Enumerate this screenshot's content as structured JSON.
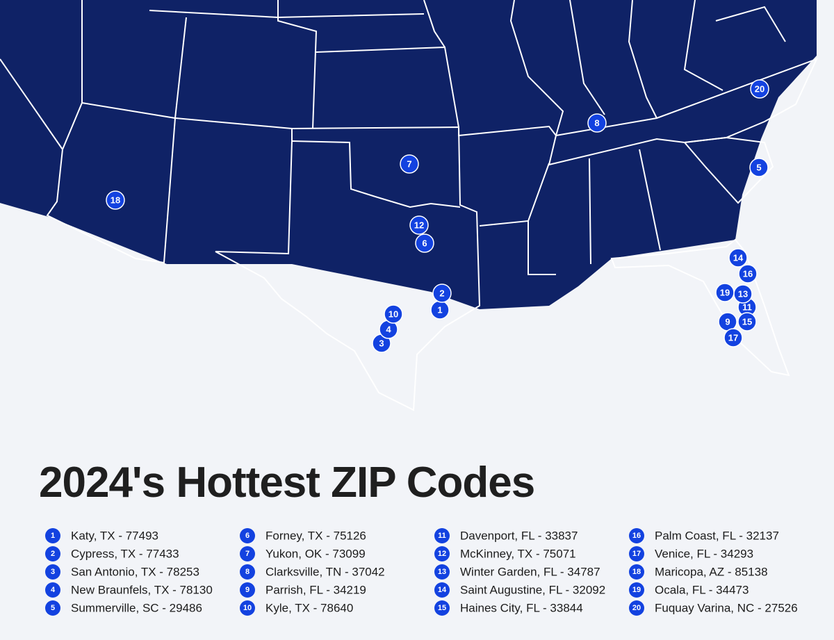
{
  "title": "2024's Hottest ZIP Codes",
  "locations": [
    {
      "rank": 1,
      "label": "Katy, TX - 77493"
    },
    {
      "rank": 2,
      "label": "Cypress, TX - 77433"
    },
    {
      "rank": 3,
      "label": "San Antonio, TX - 78253"
    },
    {
      "rank": 4,
      "label": "New Braunfels, TX - 78130"
    },
    {
      "rank": 5,
      "label": "Summerville, SC - 29486"
    },
    {
      "rank": 6,
      "label": "Forney, TX - 75126"
    },
    {
      "rank": 7,
      "label": "Yukon, OK - 73099"
    },
    {
      "rank": 8,
      "label": "Clarksville, TN - 37042"
    },
    {
      "rank": 9,
      "label": "Parrish, FL - 34219"
    },
    {
      "rank": 10,
      "label": "Kyle, TX - 78640"
    },
    {
      "rank": 11,
      "label": "Davenport, FL - 33837"
    },
    {
      "rank": 12,
      "label": "McKinney, TX - 75071"
    },
    {
      "rank": 13,
      "label": "Winter Garden, FL - 34787"
    },
    {
      "rank": 14,
      "label": "Saint Augustine, FL - 32092"
    },
    {
      "rank": 15,
      "label": "Haines City, FL - 33844"
    },
    {
      "rank": 16,
      "label": "Palm Coast, FL - 32137"
    },
    {
      "rank": 17,
      "label": "Venice, FL - 34293"
    },
    {
      "rank": 18,
      "label": "Maricopa, AZ - 85138"
    },
    {
      "rank": 19,
      "label": "Ocala, FL - 34473"
    },
    {
      "rank": 20,
      "label": "Fuquay Varina, NC - 27526"
    }
  ]
}
